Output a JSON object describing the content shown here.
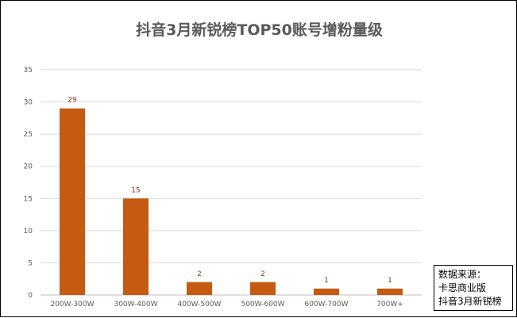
{
  "chart_data": {
    "type": "bar",
    "title": "抖音3月新锐榜TOP50账号增粉量级",
    "categories": [
      "200W-300W",
      "300W-400W",
      "400W-500W",
      "500W-600W",
      "600W-700W",
      "700W+"
    ],
    "values": [
      29,
      15,
      2,
      2,
      1,
      1
    ],
    "ylim": [
      0,
      35
    ],
    "yticks": [
      0,
      5,
      10,
      15,
      20,
      25,
      30,
      35
    ],
    "grid": true,
    "bar_color": "#C55A11",
    "label_color": "#843C0C"
  },
  "source_note": {
    "line1": "数据来源：",
    "line2": "卡思商业版",
    "line3": "抖音3月新锐榜"
  }
}
